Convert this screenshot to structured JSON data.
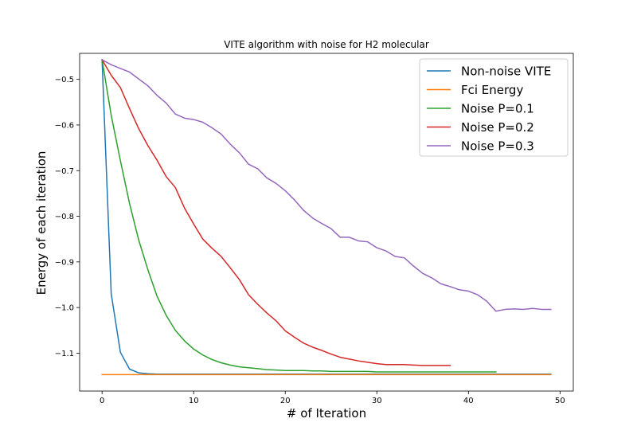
{
  "chart_data": {
    "type": "line",
    "title": "VITE algorithm with noise for H2 molecular",
    "xlabel": "# of Iteration",
    "ylabel": "Energy of each iteration",
    "xlim": [
      -2.45,
      51.45
    ],
    "ylim": [
      -1.183,
      -0.443
    ],
    "xticks": [
      0,
      10,
      20,
      30,
      40,
      50
    ],
    "yticks": [
      -1.1,
      -1.0,
      -0.9,
      -0.8,
      -0.7,
      -0.6,
      -0.5
    ],
    "ytick_labels": [
      "−1.1",
      "−1.0",
      "−0.9",
      "−0.8",
      "−0.7",
      "−0.6",
      "−0.5"
    ],
    "grid": false,
    "legend_position": "top-right",
    "series": [
      {
        "name": "Non-noise VITE",
        "color": "#1f77b4",
        "values": [
          -0.457,
          -0.97,
          -1.098,
          -1.135,
          -1.143,
          -1.145,
          -1.146,
          -1.146,
          -1.146,
          -1.146,
          -1.146,
          -1.146,
          -1.146,
          -1.146,
          -1.146,
          -1.146,
          -1.146,
          -1.146,
          -1.146,
          -1.146,
          -1.146,
          -1.146,
          -1.146,
          -1.146,
          -1.146,
          -1.146,
          -1.146,
          -1.146,
          -1.146,
          -1.146,
          -1.146,
          -1.146,
          -1.146,
          -1.146,
          -1.146,
          -1.146,
          -1.146,
          -1.146,
          -1.146,
          -1.146,
          -1.146,
          -1.146,
          -1.146,
          -1.146,
          -1.146,
          -1.146,
          -1.146,
          -1.146,
          -1.146,
          -1.146
        ]
      },
      {
        "name": "Fci Energy",
        "color": "#ff7f0e",
        "values": [
          -1.147,
          -1.147,
          -1.147,
          -1.147,
          -1.147,
          -1.147,
          -1.147,
          -1.147,
          -1.147,
          -1.147,
          -1.147,
          -1.147,
          -1.147,
          -1.147,
          -1.147,
          -1.147,
          -1.147,
          -1.147,
          -1.147,
          -1.147,
          -1.147,
          -1.147,
          -1.147,
          -1.147,
          -1.147,
          -1.147,
          -1.147,
          -1.147,
          -1.147,
          -1.147,
          -1.147,
          -1.147,
          -1.147,
          -1.147,
          -1.147,
          -1.147,
          -1.147,
          -1.147,
          -1.147,
          -1.147,
          -1.147,
          -1.147,
          -1.147,
          -1.147,
          -1.147,
          -1.147,
          -1.147,
          -1.147,
          -1.147,
          -1.147
        ]
      },
      {
        "name": "Noise P=0.1",
        "color": "#2ca02c",
        "values": [
          -0.457,
          -0.579,
          -0.678,
          -0.772,
          -0.852,
          -0.917,
          -0.975,
          -1.017,
          -1.05,
          -1.073,
          -1.091,
          -1.104,
          -1.114,
          -1.121,
          -1.126,
          -1.13,
          -1.132,
          -1.134,
          -1.136,
          -1.137,
          -1.138,
          -1.138,
          -1.138,
          -1.139,
          -1.139,
          -1.14,
          -1.14,
          -1.14,
          -1.14,
          -1.14,
          -1.141,
          -1.141,
          -1.141,
          -1.141,
          -1.141,
          -1.141,
          -1.141,
          -1.141,
          -1.141,
          -1.141,
          -1.141,
          -1.141,
          -1.141,
          -1.141
        ]
      },
      {
        "name": "Noise P=0.2",
        "color": "#d62728",
        "values": [
          -0.457,
          -0.491,
          -0.518,
          -0.564,
          -0.608,
          -0.645,
          -0.677,
          -0.713,
          -0.737,
          -0.782,
          -0.817,
          -0.85,
          -0.87,
          -0.888,
          -0.913,
          -0.939,
          -0.972,
          -0.993,
          -1.012,
          -1.029,
          -1.051,
          -1.065,
          -1.078,
          -1.087,
          -1.094,
          -1.102,
          -1.109,
          -1.113,
          -1.117,
          -1.12,
          -1.123,
          -1.125,
          -1.125,
          -1.125,
          -1.126,
          -1.127,
          -1.127,
          -1.127,
          -1.127
        ]
      },
      {
        "name": "Noise P=0.3",
        "color": "#9467bd",
        "values": [
          -0.457,
          -0.468,
          -0.476,
          -0.484,
          -0.499,
          -0.514,
          -0.535,
          -0.552,
          -0.576,
          -0.585,
          -0.588,
          -0.594,
          -0.606,
          -0.62,
          -0.642,
          -0.661,
          -0.686,
          -0.696,
          -0.716,
          -0.728,
          -0.744,
          -0.764,
          -0.787,
          -0.804,
          -0.816,
          -0.827,
          -0.846,
          -0.846,
          -0.854,
          -0.856,
          -0.869,
          -0.876,
          -0.888,
          -0.891,
          -0.909,
          -0.925,
          -0.935,
          -0.948,
          -0.954,
          -0.961,
          -0.964,
          -0.972,
          -0.986,
          -1.008,
          -1.004,
          -1.003,
          -1.004,
          -1.002,
          -1.004,
          -1.004
        ]
      }
    ]
  }
}
